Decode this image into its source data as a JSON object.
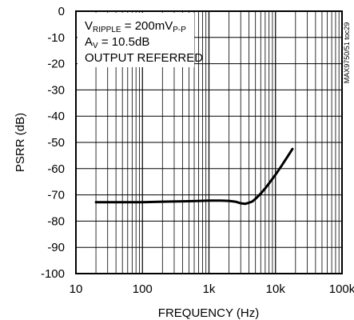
{
  "chart_data": {
    "type": "line",
    "xlabel": "FREQUENCY (Hz)",
    "ylabel": "PSRR (dB)",
    "x_scale": "log",
    "xlim": [
      10,
      100000
    ],
    "ylim": [
      -100,
      0
    ],
    "grid": true,
    "x_ticks": [
      10,
      100,
      1000,
      10000,
      100000
    ],
    "x_tick_labels": [
      "10",
      "100",
      "1k",
      "10k",
      "100k"
    ],
    "y_ticks": [
      0,
      -10,
      -20,
      -30,
      -40,
      -50,
      -60,
      -70,
      -80,
      -90,
      -100
    ],
    "y_tick_labels": [
      "0",
      "-10",
      "-20",
      "-30",
      "-40",
      "-50",
      "-60",
      "-70",
      "-80",
      "-90",
      "-100"
    ],
    "annotations": {
      "ripple_prefix": "V",
      "ripple_sub": "RIPPLE",
      "ripple_mid": " = 200mV",
      "ripple_sub2": "P-P",
      "av_prefix": "A",
      "av_sub": "V",
      "av_value": " = 10.5dB",
      "output_referred": "OUTPUT REFERRED"
    },
    "side_label": "MAX9750/51 toc29",
    "series": [
      {
        "x": [
          20,
          50,
          100,
          200,
          500,
          1000,
          1500,
          2000,
          2500,
          3000,
          3500,
          4000,
          4500,
          5000,
          6000,
          7000,
          8000,
          10000,
          12000,
          15000,
          18000
        ],
        "y": [
          -72.8,
          -72.8,
          -72.8,
          -72.6,
          -72.4,
          -72.2,
          -72.2,
          -72.3,
          -72.6,
          -73.2,
          -73.4,
          -73.0,
          -72.5,
          -71.5,
          -69.5,
          -67.5,
          -65.6,
          -62.3,
          -59.4,
          -55.6,
          -52.5
        ]
      }
    ]
  }
}
